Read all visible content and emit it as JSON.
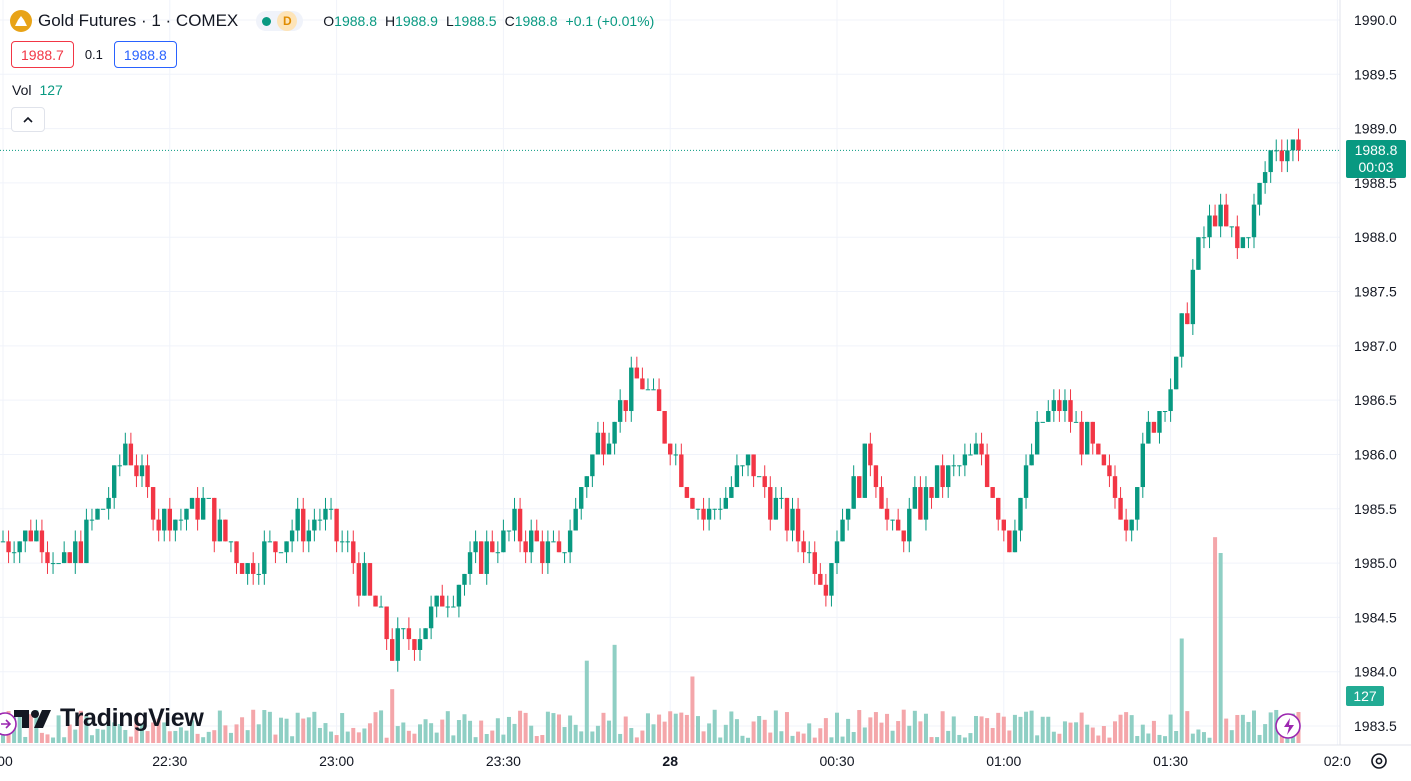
{
  "header": {
    "symbol": "Gold Futures · 1 · COMEX",
    "market_status_badge": "D",
    "ohlc": {
      "o_label": "O",
      "o": "1988.8",
      "h_label": "H",
      "h": "1988.9",
      "l_label": "L",
      "l": "1988.5",
      "c_label": "C",
      "c": "1988.8",
      "change": "+0.1 (+0.01%)"
    }
  },
  "quote": {
    "bid": "1988.7",
    "spread": "0.1",
    "ask": "1988.8"
  },
  "volume_legend": {
    "label": "Vol",
    "value": "127"
  },
  "price_scale": {
    "last_price": "1988.8",
    "countdown": "00:03",
    "volume_value": "127"
  },
  "branding": {
    "logo_text": "TradingView"
  },
  "colors": {
    "up": "#089981",
    "down": "#f23645",
    "up_volume": "#8fcfc4",
    "down_volume": "#f4a6aa",
    "grid": "#f0f3fa"
  },
  "icons": [
    "gold-coin-icon",
    "market-open-dot-icon",
    "chevron-up-icon",
    "goto-start-icon",
    "lightning-icon",
    "gear-icon"
  ],
  "chart_data": {
    "type": "candlestick",
    "y_axis": {
      "min": 1983.5,
      "max": 1990.0,
      "step": 0.5,
      "tick_labels": [
        "1990.0",
        "1989.5",
        "1989.0",
        "1988.5",
        "1988.0",
        "1987.5",
        "1987.0",
        "1986.5",
        "1986.0",
        "1985.5",
        "1985.0",
        "1984.5",
        "1984.0",
        "1983.5"
      ]
    },
    "x_axis": {
      "tick_labels": [
        ":00",
        "22:30",
        "23:00",
        "23:30",
        "28",
        "00:30",
        "01:00",
        "01:30",
        "02:0"
      ],
      "tick_minutes": [
        0,
        30,
        60,
        90,
        120,
        150,
        180,
        210,
        240
      ],
      "bold_label": "28",
      "first_bar_minute": 0,
      "minutes_per_bar": 1
    },
    "grid": true,
    "last_price_line": 1988.8,
    "anchors": [
      {
        "i": 0,
        "p": 1985.2
      },
      {
        "i": 6,
        "p": 1985.3
      },
      {
        "i": 11,
        "p": 1984.9
      },
      {
        "i": 19,
        "p": 1985.6
      },
      {
        "i": 22,
        "p": 1986.1
      },
      {
        "i": 28,
        "p": 1985.4
      },
      {
        "i": 36,
        "p": 1985.5
      },
      {
        "i": 44,
        "p": 1985.0
      },
      {
        "i": 52,
        "p": 1985.3
      },
      {
        "i": 58,
        "p": 1985.4
      },
      {
        "i": 64,
        "p": 1984.9
      },
      {
        "i": 70,
        "p": 1984.2
      },
      {
        "i": 75,
        "p": 1984.4
      },
      {
        "i": 84,
        "p": 1985.0
      },
      {
        "i": 92,
        "p": 1985.3
      },
      {
        "i": 100,
        "p": 1985.0
      },
      {
        "i": 106,
        "p": 1986.0
      },
      {
        "i": 110,
        "p": 1986.4
      },
      {
        "i": 115,
        "p": 1986.7
      },
      {
        "i": 121,
        "p": 1986.0
      },
      {
        "i": 126,
        "p": 1985.4
      },
      {
        "i": 134,
        "p": 1985.9
      },
      {
        "i": 141,
        "p": 1985.4
      },
      {
        "i": 148,
        "p": 1984.9
      },
      {
        "i": 152,
        "p": 1985.6
      },
      {
        "i": 156,
        "p": 1986.0
      },
      {
        "i": 160,
        "p": 1985.2
      },
      {
        "i": 164,
        "p": 1985.5
      },
      {
        "i": 170,
        "p": 1985.8
      },
      {
        "i": 176,
        "p": 1986.0
      },
      {
        "i": 181,
        "p": 1985.2
      },
      {
        "i": 186,
        "p": 1986.2
      },
      {
        "i": 190,
        "p": 1986.5
      },
      {
        "i": 196,
        "p": 1986.0
      },
      {
        "i": 202,
        "p": 1985.4
      },
      {
        "i": 206,
        "p": 1986.2
      },
      {
        "i": 211,
        "p": 1986.8
      },
      {
        "i": 214,
        "p": 1987.7
      },
      {
        "i": 218,
        "p": 1988.2
      },
      {
        "i": 222,
        "p": 1987.9
      },
      {
        "i": 226,
        "p": 1988.4
      },
      {
        "i": 229,
        "p": 1988.9
      },
      {
        "i": 233,
        "p": 1988.8
      }
    ],
    "volume_range": [
      0,
      300
    ],
    "volume_spikes": [
      {
        "i": 70,
        "v": 85
      },
      {
        "i": 105,
        "v": 130
      },
      {
        "i": 110,
        "v": 155
      },
      {
        "i": 124,
        "v": 105
      },
      {
        "i": 212,
        "v": 165
      },
      {
        "i": 218,
        "v": 325
      },
      {
        "i": 219,
        "v": 300
      }
    ]
  }
}
